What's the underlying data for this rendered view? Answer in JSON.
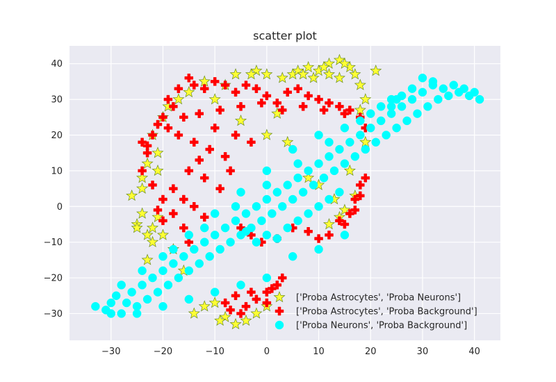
{
  "chart_data": {
    "type": "scatter",
    "title": "scatter plot",
    "xlabel": "",
    "ylabel": "",
    "xlim": [
      -38,
      45
    ],
    "ylim": [
      -37.5,
      45
    ],
    "xticks": [
      -30,
      -20,
      -10,
      0,
      10,
      20,
      30,
      40
    ],
    "yticks": [
      -30,
      -20,
      -10,
      0,
      10,
      20,
      30,
      40
    ],
    "xtick_labels": [
      "−30",
      "−20",
      "−10",
      "0",
      "10",
      "20",
      "30",
      "40"
    ],
    "ytick_labels": [
      "−30",
      "−20",
      "−10",
      "0",
      "10",
      "20",
      "30",
      "40"
    ],
    "grid": true,
    "background": "#eaeaf2",
    "legend_position": "lower-right",
    "series": [
      {
        "name": "['Proba Astrocytes', 'Proba Neurons']",
        "marker": "star",
        "color": "#ffff33",
        "edgecolor": "#6b8e23",
        "points": [
          [
            -26,
            3
          ],
          [
            -25,
            -5
          ],
          [
            -24,
            5
          ],
          [
            -23,
            -8
          ],
          [
            -22,
            -10
          ],
          [
            -23,
            12
          ],
          [
            -22,
            20
          ],
          [
            -21,
            -3
          ],
          [
            -19,
            28
          ],
          [
            -17,
            30
          ],
          [
            -15,
            32
          ],
          [
            -12,
            35
          ],
          [
            -10,
            30
          ],
          [
            -8,
            34
          ],
          [
            -6,
            37
          ],
          [
            -2,
            38
          ],
          [
            0,
            37
          ],
          [
            3,
            36
          ],
          [
            5,
            37
          ],
          [
            8,
            39
          ],
          [
            10,
            38
          ],
          [
            12,
            40
          ],
          [
            14,
            41
          ],
          [
            16,
            39
          ],
          [
            17,
            37
          ],
          [
            18,
            34
          ],
          [
            19,
            30
          ],
          [
            18,
            27
          ],
          [
            21,
            38
          ],
          [
            14,
            36
          ],
          [
            12,
            37
          ],
          [
            9,
            36
          ],
          [
            6,
            38
          ],
          [
            2,
            26
          ],
          [
            -5,
            24
          ],
          [
            0,
            20
          ],
          [
            4,
            18
          ],
          [
            8,
            8
          ],
          [
            10,
            6
          ],
          [
            13,
            2
          ],
          [
            17,
            3
          ],
          [
            15,
            -1
          ],
          [
            14,
            -3
          ],
          [
            12,
            -5
          ],
          [
            16,
            10
          ],
          [
            19,
            18
          ],
          [
            -10,
            -27
          ],
          [
            -8,
            -31
          ],
          [
            -6,
            -33
          ],
          [
            -4,
            -32
          ],
          [
            -2,
            -30
          ],
          [
            0,
            -28
          ],
          [
            -12,
            -28
          ],
          [
            -14,
            -30
          ],
          [
            -9,
            -32
          ],
          [
            -20,
            25
          ],
          [
            -23,
            -15
          ],
          [
            -24,
            8
          ],
          [
            -18,
            -12
          ],
          [
            -16,
            -18
          ],
          [
            -25,
            -6
          ],
          [
            -24,
            -2
          ],
          [
            -22,
            -6
          ],
          [
            -21,
            10
          ],
          [
            -21,
            15
          ],
          [
            -20,
            -8
          ],
          [
            11,
            39
          ],
          [
            15,
            40
          ],
          [
            7,
            37
          ],
          [
            -3,
            37
          ]
        ]
      },
      {
        "name": "['Proba Astrocytes', 'Proba Background']",
        "marker": "plus",
        "color": "#ff0000",
        "edgecolor": "#ff0000",
        "points": [
          [
            -19,
            30
          ],
          [
            -18,
            28
          ],
          [
            -17,
            33
          ],
          [
            -15,
            36
          ],
          [
            -14,
            34
          ],
          [
            -12,
            33
          ],
          [
            -10,
            35
          ],
          [
            -8,
            34
          ],
          [
            -6,
            32
          ],
          [
            -4,
            34
          ],
          [
            -2,
            33
          ],
          [
            0,
            31
          ],
          [
            2,
            29
          ],
          [
            4,
            32
          ],
          [
            6,
            33
          ],
          [
            8,
            31
          ],
          [
            10,
            30
          ],
          [
            12,
            29
          ],
          [
            14,
            28
          ],
          [
            16,
            27
          ],
          [
            18,
            25
          ],
          [
            -20,
            25
          ],
          [
            -22,
            20
          ],
          [
            -23,
            15
          ],
          [
            -24,
            10
          ],
          [
            -22,
            6
          ],
          [
            -20,
            2
          ],
          [
            -18,
            -2
          ],
          [
            -16,
            -6
          ],
          [
            -15,
            -10
          ],
          [
            -20,
            -4
          ],
          [
            -21,
            -1
          ],
          [
            -23,
            17
          ],
          [
            -24,
            18
          ],
          [
            -21,
            23
          ],
          [
            -19,
            22
          ],
          [
            -17,
            20
          ],
          [
            -14,
            18
          ],
          [
            -11,
            16
          ],
          [
            -8,
            14
          ],
          [
            -15,
            10
          ],
          [
            -12,
            8
          ],
          [
            -9,
            5
          ],
          [
            -18,
            5
          ],
          [
            -16,
            2
          ],
          [
            -14,
            0
          ],
          [
            -12,
            -3
          ],
          [
            -13,
            13
          ],
          [
            -10,
            22
          ],
          [
            -6,
            20
          ],
          [
            -3,
            18
          ],
          [
            -7,
            10
          ],
          [
            -5,
            -6
          ],
          [
            -3,
            -8
          ],
          [
            -1,
            -10
          ],
          [
            2,
            -9
          ],
          [
            5,
            -6
          ],
          [
            8,
            -7
          ],
          [
            10,
            -9
          ],
          [
            12,
            -8
          ],
          [
            14,
            -4
          ],
          [
            16,
            -2
          ],
          [
            17,
            2
          ],
          [
            18,
            6
          ],
          [
            19,
            8
          ],
          [
            18,
            3
          ],
          [
            17,
            -1
          ],
          [
            15,
            -5
          ],
          [
            -6,
            -25
          ],
          [
            -4,
            -28
          ],
          [
            -2,
            -26
          ],
          [
            0,
            -24
          ],
          [
            2,
            -22
          ],
          [
            3,
            -20
          ],
          [
            -8,
            -27
          ],
          [
            -7,
            -29
          ],
          [
            -5,
            -30
          ],
          [
            0,
            -27
          ],
          [
            1,
            -23
          ],
          [
            -3,
            -24
          ],
          [
            -16,
            25
          ],
          [
            -13,
            26
          ],
          [
            -9,
            27
          ],
          [
            -5,
            28
          ],
          [
            -1,
            29
          ],
          [
            3,
            27
          ],
          [
            7,
            28
          ],
          [
            11,
            27
          ],
          [
            15,
            26
          ],
          [
            19,
            22
          ]
        ]
      },
      {
        "name": "['Proba Neurons', 'Proba Background']",
        "marker": "circle",
        "color": "#00ffff",
        "edgecolor": "#00ffff",
        "points": [
          [
            -33,
            -28
          ],
          [
            -31,
            -29
          ],
          [
            -30,
            -27
          ],
          [
            -28,
            -30
          ],
          [
            -29,
            -25
          ],
          [
            -27,
            -27
          ],
          [
            -26,
            -24
          ],
          [
            -25,
            -28
          ],
          [
            -24,
            -22
          ],
          [
            -23,
            -26
          ],
          [
            -22,
            -20
          ],
          [
            -21,
            -24
          ],
          [
            -20,
            -18
          ],
          [
            -19,
            -22
          ],
          [
            -18,
            -16
          ],
          [
            -17,
            -20
          ],
          [
            -16,
            -14
          ],
          [
            -15,
            -18
          ],
          [
            -14,
            -12
          ],
          [
            -13,
            -16
          ],
          [
            -12,
            -10
          ],
          [
            -11,
            -14
          ],
          [
            -10,
            -8
          ],
          [
            -9,
            -12
          ],
          [
            -8,
            -6
          ],
          [
            -7,
            -10
          ],
          [
            -6,
            -4
          ],
          [
            -5,
            -8
          ],
          [
            -4,
            -2
          ],
          [
            -3,
            -6
          ],
          [
            -2,
            0
          ],
          [
            -1,
            -4
          ],
          [
            0,
            2
          ],
          [
            1,
            -2
          ],
          [
            2,
            4
          ],
          [
            3,
            0
          ],
          [
            4,
            6
          ],
          [
            5,
            2
          ],
          [
            6,
            8
          ],
          [
            7,
            4
          ],
          [
            8,
            10
          ],
          [
            9,
            6
          ],
          [
            10,
            12
          ],
          [
            11,
            8
          ],
          [
            12,
            14
          ],
          [
            13,
            10
          ],
          [
            14,
            16
          ],
          [
            15,
            12
          ],
          [
            16,
            18
          ],
          [
            17,
            14
          ],
          [
            18,
            20
          ],
          [
            19,
            16
          ],
          [
            20,
            22
          ],
          [
            21,
            18
          ],
          [
            22,
            24
          ],
          [
            23,
            20
          ],
          [
            24,
            26
          ],
          [
            25,
            22
          ],
          [
            26,
            28
          ],
          [
            27,
            24
          ],
          [
            28,
            30
          ],
          [
            29,
            26
          ],
          [
            30,
            32
          ],
          [
            31,
            28
          ],
          [
            32,
            34
          ],
          [
            33,
            30
          ],
          [
            34,
            33
          ],
          [
            35,
            31
          ],
          [
            36,
            34
          ],
          [
            37,
            32
          ],
          [
            38,
            33
          ],
          [
            39,
            31
          ],
          [
            40,
            32
          ],
          [
            41,
            30
          ],
          [
            30,
            36
          ],
          [
            32,
            35
          ],
          [
            28,
            33
          ],
          [
            26,
            31
          ],
          [
            24,
            30
          ],
          [
            22,
            28
          ],
          [
            -30,
            -30
          ],
          [
            -25,
            -30
          ],
          [
            -20,
            -28
          ],
          [
            -15,
            -26
          ],
          [
            -10,
            -24
          ],
          [
            -5,
            -22
          ],
          [
            0,
            -20
          ],
          [
            5,
            -14
          ],
          [
            10,
            -12
          ],
          [
            15,
            -8
          ],
          [
            -2,
            -10
          ],
          [
            -4,
            -7
          ],
          [
            0,
            -8
          ],
          [
            2,
            -9
          ],
          [
            4,
            -6
          ],
          [
            6,
            -4
          ],
          [
            8,
            -2
          ],
          [
            10,
            0
          ],
          [
            12,
            2
          ],
          [
            14,
            4
          ],
          [
            -20,
            -14
          ],
          [
            -15,
            -8
          ],
          [
            -10,
            -2
          ],
          [
            -5,
            4
          ],
          [
            0,
            10
          ],
          [
            5,
            16
          ],
          [
            10,
            20
          ],
          [
            15,
            22
          ],
          [
            20,
            26
          ],
          [
            25,
            30
          ],
          [
            -28,
            -22
          ],
          [
            -24,
            -18
          ],
          [
            -18,
            -12
          ],
          [
            -12,
            -6
          ],
          [
            -6,
            0
          ],
          [
            0,
            6
          ],
          [
            6,
            12
          ],
          [
            12,
            18
          ],
          [
            18,
            24
          ],
          [
            24,
            28
          ]
        ]
      }
    ]
  }
}
